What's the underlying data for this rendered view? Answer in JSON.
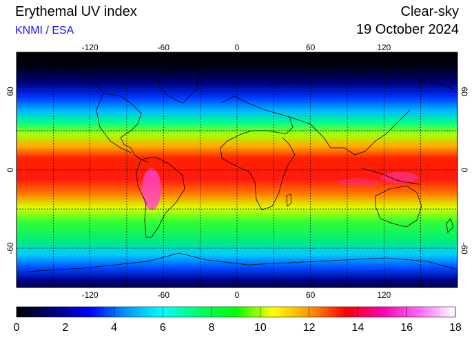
{
  "header": {
    "title": "Erythemal UV index",
    "subtitle": "KNMI / ESA",
    "mode": "Clear-sky",
    "date": "19 October 2024"
  },
  "map": {
    "lon_range": [
      -180,
      180
    ],
    "lat_range": [
      -90,
      90
    ],
    "lon_ticks": [
      "-120",
      "-60",
      "0",
      "60",
      "120"
    ],
    "lon_tick_values": [
      -120,
      -60,
      0,
      60,
      120
    ],
    "lat_ticks": [
      "60",
      "0",
      "-60"
    ],
    "lat_tick_values": [
      60,
      0,
      -60
    ],
    "right_lat_ticks": [
      "60",
      "0",
      "-60"
    ],
    "grid_spacing_deg": 30,
    "grid": "dashed"
  },
  "colorbar": {
    "ticks": [
      "0",
      "2",
      "4",
      "6",
      "8",
      "10",
      "12",
      "14",
      "16",
      "18"
    ],
    "tick_values": [
      0,
      2,
      4,
      6,
      8,
      10,
      12,
      14,
      16,
      18
    ],
    "range": [
      0,
      18
    ],
    "colors": [
      "#000000",
      "#00007a",
      "#0000ff",
      "#0099ff",
      "#00ffff",
      "#00ff66",
      "#00ff00",
      "#ffff00",
      "#ff9900",
      "#ff0000",
      "#ff00aa",
      "#ff66ff",
      "#ffffff"
    ]
  }
}
